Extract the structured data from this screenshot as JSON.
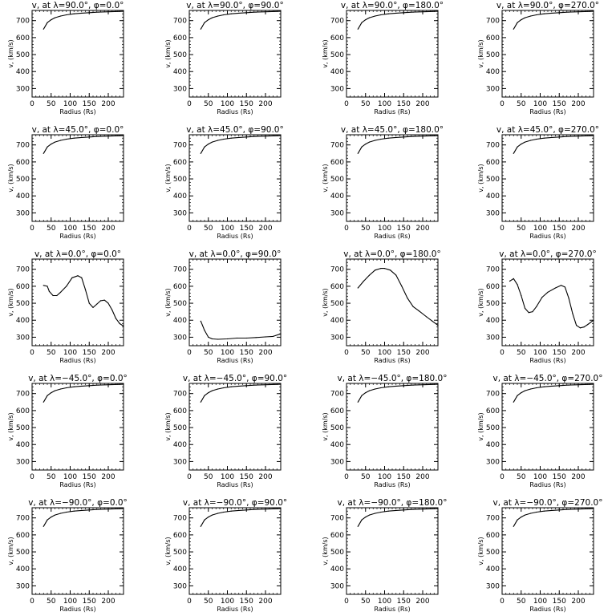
{
  "chart_data": [
    {
      "type": "line",
      "title": "v, at λ=90.0°, φ=0.0°",
      "xlabel": "Radius (Rs)",
      "ylabel": "v, (km/s)",
      "xlim": [
        0,
        240
      ],
      "ylim": [
        250,
        760
      ],
      "xticks": [
        0,
        50,
        100,
        150,
        200
      ],
      "yticks": [
        300,
        400,
        500,
        600,
        700
      ],
      "x": [
        30,
        40,
        50,
        60,
        75,
        90,
        110,
        130,
        150,
        175,
        200,
        225,
        240
      ],
      "y": [
        650,
        688,
        705,
        717,
        727,
        734,
        740,
        744,
        747,
        750,
        752,
        754,
        755
      ]
    },
    {
      "type": "line",
      "title": "v, at λ=90.0°, φ=90.0°",
      "xlabel": "Radius (Rs)",
      "ylabel": "v, (km/s)",
      "xlim": [
        0,
        240
      ],
      "ylim": [
        250,
        760
      ],
      "xticks": [
        0,
        50,
        100,
        150,
        200
      ],
      "yticks": [
        300,
        400,
        500,
        600,
        700
      ],
      "x": [
        30,
        40,
        50,
        60,
        75,
        90,
        110,
        130,
        150,
        175,
        200,
        225,
        240
      ],
      "y": [
        650,
        688,
        705,
        717,
        727,
        734,
        740,
        744,
        747,
        750,
        752,
        754,
        755
      ]
    },
    {
      "type": "line",
      "title": "v, at λ=90.0°, φ=180.0°",
      "xlabel": "Radius (Rs)",
      "ylabel": "v, (km/s)",
      "xlim": [
        0,
        240
      ],
      "ylim": [
        250,
        760
      ],
      "xticks": [
        0,
        50,
        100,
        150,
        200
      ],
      "yticks": [
        300,
        400,
        500,
        600,
        700
      ],
      "x": [
        30,
        40,
        50,
        60,
        75,
        90,
        110,
        130,
        150,
        175,
        200,
        225,
        240
      ],
      "y": [
        650,
        688,
        705,
        717,
        727,
        734,
        740,
        744,
        747,
        750,
        752,
        754,
        755
      ]
    },
    {
      "type": "line",
      "title": "v, at λ=90.0°, φ=270.0°",
      "xlabel": "Radius (Rs)",
      "ylabel": "v, (km/s)",
      "xlim": [
        0,
        240
      ],
      "ylim": [
        250,
        760
      ],
      "xticks": [
        0,
        50,
        100,
        150,
        200
      ],
      "yticks": [
        300,
        400,
        500,
        600,
        700
      ],
      "x": [
        30,
        40,
        50,
        60,
        75,
        90,
        110,
        130,
        150,
        175,
        200,
        225,
        240
      ],
      "y": [
        650,
        688,
        705,
        717,
        727,
        734,
        740,
        744,
        747,
        750,
        752,
        754,
        755
      ]
    },
    {
      "type": "line",
      "title": "v, at λ=45.0°, φ=0.0°",
      "xlabel": "Radius (Rs)",
      "ylabel": "v, (km/s)",
      "xlim": [
        0,
        240
      ],
      "ylim": [
        250,
        760
      ],
      "xticks": [
        0,
        50,
        100,
        150,
        200
      ],
      "yticks": [
        300,
        400,
        500,
        600,
        700
      ],
      "x": [
        30,
        40,
        50,
        60,
        75,
        90,
        110,
        130,
        150,
        175,
        200,
        225,
        240
      ],
      "y": [
        650,
        688,
        705,
        717,
        727,
        734,
        740,
        744,
        747,
        750,
        752,
        754,
        755
      ]
    },
    {
      "type": "line",
      "title": "v, at λ=45.0°, φ=90.0°",
      "xlabel": "Radius (Rs)",
      "ylabel": "v, (km/s)",
      "xlim": [
        0,
        240
      ],
      "ylim": [
        250,
        760
      ],
      "xticks": [
        0,
        50,
        100,
        150,
        200
      ],
      "yticks": [
        300,
        400,
        500,
        600,
        700
      ],
      "x": [
        30,
        40,
        50,
        60,
        75,
        90,
        110,
        130,
        150,
        175,
        200,
        225,
        240
      ],
      "y": [
        650,
        688,
        705,
        717,
        727,
        734,
        740,
        744,
        747,
        750,
        752,
        754,
        755
      ]
    },
    {
      "type": "line",
      "title": "v, at λ=45.0°, φ=180.0°",
      "xlabel": "Radius (Rs)",
      "ylabel": "v, (km/s)",
      "xlim": [
        0,
        240
      ],
      "ylim": [
        250,
        760
      ],
      "xticks": [
        0,
        50,
        100,
        150,
        200
      ],
      "yticks": [
        300,
        400,
        500,
        600,
        700
      ],
      "x": [
        30,
        40,
        50,
        60,
        75,
        90,
        110,
        130,
        150,
        175,
        200,
        225,
        240
      ],
      "y": [
        650,
        688,
        705,
        717,
        727,
        734,
        740,
        744,
        747,
        750,
        752,
        754,
        755
      ]
    },
    {
      "type": "line",
      "title": "v, at λ=45.0°, φ=270.0°",
      "xlabel": "Radius (Rs)",
      "ylabel": "v, (km/s)",
      "xlim": [
        0,
        240
      ],
      "ylim": [
        250,
        760
      ],
      "xticks": [
        0,
        50,
        100,
        150,
        200
      ],
      "yticks": [
        300,
        400,
        500,
        600,
        700
      ],
      "x": [
        30,
        40,
        50,
        60,
        75,
        90,
        110,
        130,
        150,
        175,
        200,
        225,
        240
      ],
      "y": [
        650,
        688,
        705,
        717,
        727,
        734,
        740,
        744,
        747,
        750,
        752,
        754,
        755
      ]
    },
    {
      "type": "line",
      "title": "v, at λ=0.0°, φ=0.0°",
      "xlabel": "Radius (Rs)",
      "ylabel": "v, (km/s)",
      "xlim": [
        0,
        240
      ],
      "ylim": [
        250,
        760
      ],
      "xticks": [
        0,
        50,
        100,
        150,
        200
      ],
      "yticks": [
        300,
        400,
        500,
        600,
        700
      ],
      "x": [
        30,
        40,
        45,
        55,
        65,
        75,
        90,
        105,
        120,
        130,
        140,
        150,
        160,
        170,
        180,
        190,
        200,
        210,
        220,
        230,
        240
      ],
      "y": [
        605,
        600,
        570,
        545,
        545,
        565,
        600,
        650,
        662,
        650,
        580,
        500,
        475,
        495,
        515,
        518,
        500,
        460,
        410,
        380,
        365
      ]
    },
    {
      "type": "line",
      "title": "v, at λ=0.0°, φ=90.0°",
      "xlabel": "Radius (Rs)",
      "ylabel": "v, (km/s)",
      "xlim": [
        0,
        240
      ],
      "ylim": [
        250,
        760
      ],
      "xticks": [
        0,
        50,
        100,
        150,
        200
      ],
      "yticks": [
        300,
        400,
        500,
        600,
        700
      ],
      "x": [
        30,
        40,
        50,
        60,
        75,
        100,
        125,
        150,
        175,
        200,
        220,
        240
      ],
      "y": [
        395,
        340,
        300,
        290,
        288,
        290,
        295,
        295,
        298,
        302,
        305,
        320
      ]
    },
    {
      "type": "line",
      "title": "v, at λ=0.0°, φ=180.0°",
      "xlabel": "Radius (Rs)",
      "ylabel": "v, (km/s)",
      "xlim": [
        0,
        240
      ],
      "ylim": [
        250,
        760
      ],
      "xticks": [
        0,
        50,
        100,
        150,
        200
      ],
      "yticks": [
        300,
        400,
        500,
        600,
        700
      ],
      "x": [
        30,
        45,
        60,
        75,
        90,
        100,
        115,
        130,
        145,
        160,
        175,
        190,
        210,
        225,
        240
      ],
      "y": [
        590,
        630,
        665,
        695,
        705,
        705,
        695,
        665,
        600,
        530,
        480,
        455,
        420,
        395,
        370
      ]
    },
    {
      "type": "line",
      "title": "v, at λ=0.0°, φ=270.0°",
      "xlabel": "Radius (Rs)",
      "ylabel": "v, (km/s)",
      "xlim": [
        0,
        240
      ],
      "ylim": [
        250,
        760
      ],
      "xticks": [
        0,
        50,
        100,
        150,
        200
      ],
      "yticks": [
        300,
        400,
        500,
        600,
        700
      ],
      "x": [
        20,
        30,
        40,
        50,
        60,
        70,
        80,
        90,
        105,
        120,
        140,
        155,
        165,
        175,
        185,
        195,
        205,
        215,
        225,
        240
      ],
      "y": [
        630,
        645,
        610,
        545,
        470,
        445,
        450,
        480,
        535,
        565,
        590,
        605,
        595,
        530,
        440,
        370,
        355,
        360,
        375,
        400
      ]
    },
    {
      "type": "line",
      "title": "v, at λ=−45.0°, φ=0.0°",
      "xlabel": "Radius (Rs)",
      "ylabel": "v, (km/s)",
      "xlim": [
        0,
        240
      ],
      "ylim": [
        250,
        760
      ],
      "xticks": [
        0,
        50,
        100,
        150,
        200
      ],
      "yticks": [
        300,
        400,
        500,
        600,
        700
      ],
      "x": [
        30,
        40,
        50,
        60,
        75,
        90,
        110,
        130,
        150,
        175,
        200,
        225,
        240
      ],
      "y": [
        650,
        688,
        705,
        717,
        727,
        734,
        740,
        744,
        747,
        750,
        752,
        754,
        755
      ]
    },
    {
      "type": "line",
      "title": "v, at λ=−45.0°, φ=90.0°",
      "xlabel": "Radius (Rs)",
      "ylabel": "v, (km/s)",
      "xlim": [
        0,
        240
      ],
      "ylim": [
        250,
        760
      ],
      "xticks": [
        0,
        50,
        100,
        150,
        200
      ],
      "yticks": [
        300,
        400,
        500,
        600,
        700
      ],
      "x": [
        30,
        40,
        50,
        60,
        75,
        90,
        110,
        130,
        150,
        175,
        200,
        225,
        240
      ],
      "y": [
        650,
        688,
        705,
        717,
        727,
        734,
        740,
        744,
        747,
        750,
        752,
        754,
        755
      ]
    },
    {
      "type": "line",
      "title": "v, at λ=−45.0°, φ=180.0°",
      "xlabel": "Radius (Rs)",
      "ylabel": "v, (km/s)",
      "xlim": [
        0,
        240
      ],
      "ylim": [
        250,
        760
      ],
      "xticks": [
        0,
        50,
        100,
        150,
        200
      ],
      "yticks": [
        300,
        400,
        500,
        600,
        700
      ],
      "x": [
        30,
        40,
        50,
        60,
        75,
        90,
        110,
        130,
        150,
        175,
        200,
        225,
        240
      ],
      "y": [
        650,
        688,
        705,
        717,
        727,
        734,
        740,
        744,
        747,
        750,
        752,
        754,
        755
      ]
    },
    {
      "type": "line",
      "title": "v, at λ=−45.0°, φ=270.0°",
      "xlabel": "Radius (Rs)",
      "ylabel": "v, (km/s)",
      "xlim": [
        0,
        240
      ],
      "ylim": [
        250,
        760
      ],
      "xticks": [
        0,
        50,
        100,
        150,
        200
      ],
      "yticks": [
        300,
        400,
        500,
        600,
        700
      ],
      "x": [
        30,
        40,
        50,
        60,
        75,
        90,
        110,
        130,
        150,
        175,
        200,
        225,
        240
      ],
      "y": [
        650,
        688,
        705,
        717,
        727,
        734,
        740,
        744,
        747,
        750,
        752,
        754,
        755
      ]
    },
    {
      "type": "line",
      "title": "v, at λ=−90.0°, φ=0.0°",
      "xlabel": "Radius (Rs)",
      "ylabel": "v, (km/s)",
      "xlim": [
        0,
        240
      ],
      "ylim": [
        250,
        760
      ],
      "xticks": [
        0,
        50,
        100,
        150,
        200
      ],
      "yticks": [
        300,
        400,
        500,
        600,
        700
      ],
      "x": [
        30,
        40,
        50,
        60,
        75,
        90,
        110,
        130,
        150,
        175,
        200,
        225,
        240
      ],
      "y": [
        650,
        688,
        705,
        717,
        727,
        734,
        740,
        744,
        747,
        750,
        752,
        754,
        755
      ]
    },
    {
      "type": "line",
      "title": "v, at λ=−90.0°, φ=90.0°",
      "xlabel": "Radius (Rs)",
      "ylabel": "v, (km/s)",
      "xlim": [
        0,
        240
      ],
      "ylim": [
        250,
        760
      ],
      "xticks": [
        0,
        50,
        100,
        150,
        200
      ],
      "yticks": [
        300,
        400,
        500,
        600,
        700
      ],
      "x": [
        30,
        40,
        50,
        60,
        75,
        90,
        110,
        130,
        150,
        175,
        200,
        225,
        240
      ],
      "y": [
        650,
        688,
        705,
        717,
        727,
        734,
        740,
        744,
        747,
        750,
        752,
        754,
        755
      ]
    },
    {
      "type": "line",
      "title": "v, at λ=−90.0°, φ=180.0°",
      "xlabel": "Radius (Rs)",
      "ylabel": "v, (km/s)",
      "xlim": [
        0,
        240
      ],
      "ylim": [
        250,
        760
      ],
      "xticks": [
        0,
        50,
        100,
        150,
        200
      ],
      "yticks": [
        300,
        400,
        500,
        600,
        700
      ],
      "x": [
        30,
        40,
        50,
        60,
        75,
        90,
        110,
        130,
        150,
        175,
        200,
        225,
        240
      ],
      "y": [
        650,
        688,
        705,
        717,
        727,
        734,
        740,
        744,
        747,
        750,
        752,
        754,
        755
      ]
    },
    {
      "type": "line",
      "title": "v, at λ=−90.0°, φ=270.0°",
      "xlabel": "Radius (Rs)",
      "ylabel": "v, (km/s)",
      "xlim": [
        0,
        240
      ],
      "ylim": [
        250,
        760
      ],
      "xticks": [
        0,
        50,
        100,
        150,
        200
      ],
      "yticks": [
        300,
        400,
        500,
        600,
        700
      ],
      "x": [
        30,
        40,
        50,
        60,
        75,
        90,
        110,
        130,
        150,
        175,
        200,
        225,
        240
      ],
      "y": [
        650,
        688,
        705,
        717,
        727,
        734,
        740,
        744,
        747,
        750,
        752,
        754,
        755
      ]
    }
  ]
}
